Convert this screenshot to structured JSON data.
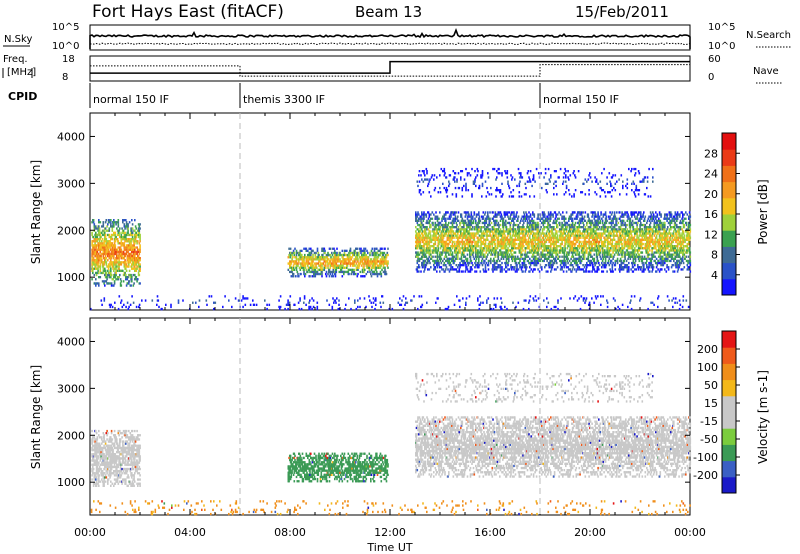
{
  "header": {
    "station": "Fort Hays East (fitACF)",
    "beam": "Beam 13",
    "date": "15/Feb/2011"
  },
  "noise_panel": {
    "left_label": "N.Sky",
    "right_label": "N.Search",
    "left_ticks": [
      "10^5",
      "10^0"
    ],
    "right_ticks": [
      "10^5",
      "10^0"
    ]
  },
  "freq_panel": {
    "left_label_line1": "Freq.",
    "left_label_line2": "[MHz]",
    "right_label": "Nave",
    "left_ticks": [
      "18",
      "8"
    ],
    "right_ticks": [
      "60",
      "0"
    ],
    "freq_steps": [
      {
        "t0": 0,
        "t1": 6,
        "value": 11
      },
      {
        "t0": 6,
        "t1": 12,
        "value": 11
      },
      {
        "t0": 12,
        "t1": 24,
        "value": 16
      }
    ],
    "nave_steps": [
      {
        "t0": 0,
        "t1": 6,
        "value": 37
      },
      {
        "t0": 6,
        "t1": 18,
        "value": 10
      },
      {
        "t0": 18,
        "t1": 24,
        "value": 40
      }
    ]
  },
  "cpid": {
    "label": "CPID",
    "segments": [
      {
        "t0": 0,
        "text": "normal 150 IF"
      },
      {
        "t0": 6,
        "text": "themis 3300 IF"
      },
      {
        "t0": 18,
        "text": "normal 150 IF"
      }
    ]
  },
  "chart_data": [
    {
      "type": "heatmap",
      "parameter": "Power",
      "ylabel": "Slant Range [km]",
      "xlabel": "Time UT",
      "xlim": [
        0,
        24
      ],
      "ylim": [
        300,
        4500
      ],
      "yticks": [
        "1000",
        "2000",
        "3000",
        "4000"
      ],
      "xticks": [
        "00:00",
        "04:00",
        "08:00",
        "12:00",
        "16:00",
        "20:00",
        "00:00"
      ],
      "colorbar": {
        "label": "Power [dB]",
        "ticks": [
          "28",
          "24",
          "20",
          "16",
          "12",
          "8",
          "4"
        ],
        "range": [
          0,
          30
        ],
        "colors": [
          "#1515ff",
          "#2a52c8",
          "#3e6b95",
          "#3aa150",
          "#9fd13a",
          "#f2c21c",
          "#f59a20",
          "#f07018",
          "#ea3a17",
          "#e30f0f"
        ]
      },
      "echo_regions": [
        {
          "t0": 0.05,
          "t1": 2.0,
          "r0": 800,
          "r1": 2200,
          "core_db": 22
        },
        {
          "t0": 7.9,
          "t1": 11.9,
          "r0": 1000,
          "r1": 1600,
          "core_db": 20
        },
        {
          "t0": 13.0,
          "t1": 24.0,
          "r0": 1100,
          "r1": 2400,
          "core_db": 18
        },
        {
          "t0": 13.0,
          "t1": 22.5,
          "r0": 2700,
          "r1": 3300,
          "core_db": 6
        },
        {
          "t0": 0.0,
          "t1": 24.0,
          "r0": 300,
          "r1": 600,
          "core_db": 6
        }
      ]
    },
    {
      "type": "heatmap",
      "parameter": "Velocity",
      "ylabel": "Slant Range [km]",
      "xlabel": "Time UT",
      "xlim": [
        0,
        24
      ],
      "ylim": [
        300,
        4500
      ],
      "yticks": [
        "1000",
        "2000",
        "3000",
        "4000"
      ],
      "xticks": [
        "00:00",
        "04:00",
        "08:00",
        "12:00",
        "16:00",
        "20:00",
        "00:00"
      ],
      "colorbar": {
        "label": "Velocity [m s-1]",
        "ticks": [
          "200",
          "100",
          "50",
          "15",
          "-15",
          "-50",
          "-100",
          "-200"
        ],
        "colors": [
          "#1a1ac8",
          "#3a5fc4",
          "#3a9a55",
          "#7bcc3d",
          "#c8c8c8",
          "#c8c8c8",
          "#f3b81a",
          "#f08e1a",
          "#ef5a1b",
          "#e41515"
        ]
      },
      "echo_regions": [
        {
          "t0": 0.05,
          "t1": 2.0,
          "r0": 900,
          "r1": 2100,
          "velocity": 0
        },
        {
          "t0": 7.9,
          "t1": 11.9,
          "r0": 1000,
          "r1": 1600,
          "velocity": 60
        },
        {
          "t0": 13.0,
          "t1": 24.0,
          "r0": 1100,
          "r1": 2400,
          "velocity": 0
        },
        {
          "t0": 13.0,
          "t1": 22.5,
          "r0": 2700,
          "r1": 3300,
          "velocity": 0
        },
        {
          "t0": 0.0,
          "t1": 24.0,
          "r0": 300,
          "r1": 600,
          "velocity": -60
        }
      ]
    }
  ],
  "mode_change_times": [
    6,
    18
  ]
}
